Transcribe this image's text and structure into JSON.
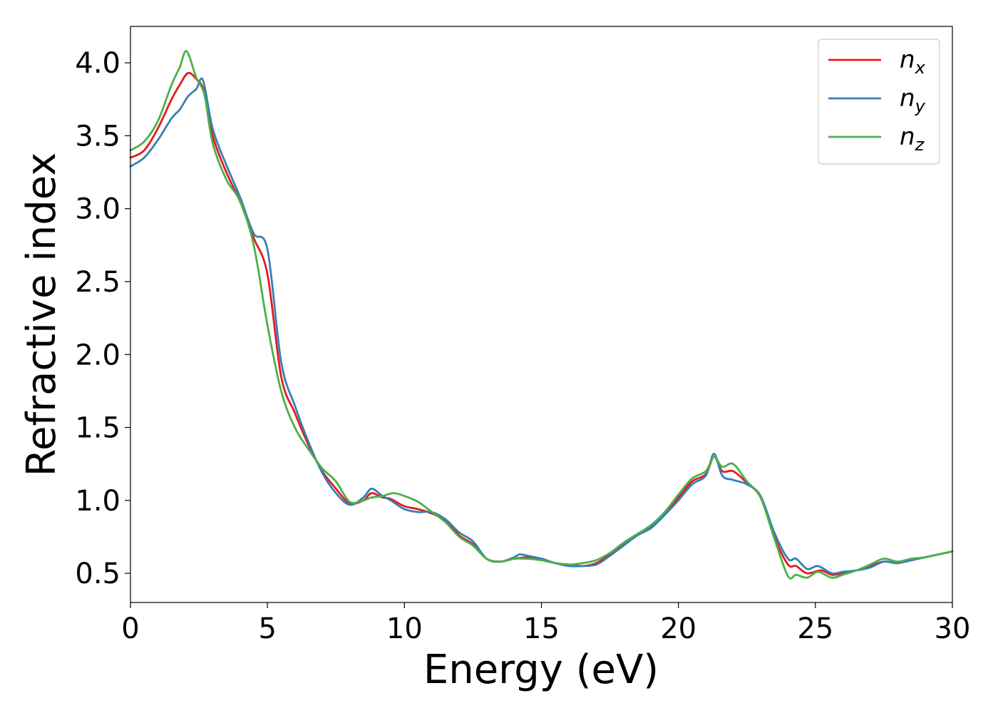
{
  "chart_data": {
    "type": "line",
    "xlabel": "Energy (eV)",
    "ylabel": "Refractive index",
    "xlim": [
      0,
      30
    ],
    "ylim": [
      0.3,
      4.25
    ],
    "xticks": [
      "0",
      "5",
      "10",
      "15",
      "20",
      "25",
      "30"
    ],
    "yticks": [
      "0.5",
      "1.0",
      "1.5",
      "2.0",
      "2.5",
      "3.0",
      "3.5",
      "4.0"
    ],
    "grid": false,
    "legend_position": "top-right",
    "series": [
      {
        "name": "n",
        "subscript": "x",
        "color": "#e41a1c",
        "points": [
          [
            0,
            3.35
          ],
          [
            0.5,
            3.4
          ],
          [
            1,
            3.55
          ],
          [
            1.5,
            3.75
          ],
          [
            1.8,
            3.85
          ],
          [
            2.1,
            3.93
          ],
          [
            2.4,
            3.89
          ],
          [
            2.7,
            3.8
          ],
          [
            3,
            3.5
          ],
          [
            3.5,
            3.25
          ],
          [
            4,
            3.05
          ],
          [
            4.5,
            2.8
          ],
          [
            5,
            2.55
          ],
          [
            5.5,
            1.85
          ],
          [
            6,
            1.6
          ],
          [
            6.5,
            1.38
          ],
          [
            7,
            1.2
          ],
          [
            7.5,
            1.08
          ],
          [
            8,
            0.98
          ],
          [
            8.5,
            1.0
          ],
          [
            8.8,
            1.05
          ],
          [
            9.2,
            1.02
          ],
          [
            9.5,
            1.01
          ],
          [
            10,
            0.96
          ],
          [
            10.5,
            0.94
          ],
          [
            11,
            0.91
          ],
          [
            11.5,
            0.86
          ],
          [
            12,
            0.76
          ],
          [
            12.5,
            0.7
          ],
          [
            13,
            0.6
          ],
          [
            13.5,
            0.58
          ],
          [
            14,
            0.6
          ],
          [
            14.5,
            0.61
          ],
          [
            15,
            0.6
          ],
          [
            15.5,
            0.57
          ],
          [
            16,
            0.56
          ],
          [
            16.5,
            0.55
          ],
          [
            17,
            0.57
          ],
          [
            17.5,
            0.63
          ],
          [
            18,
            0.7
          ],
          [
            18.5,
            0.77
          ],
          [
            19,
            0.82
          ],
          [
            19.5,
            0.91
          ],
          [
            20,
            1.02
          ],
          [
            20.5,
            1.13
          ],
          [
            21,
            1.18
          ],
          [
            21.3,
            1.3
          ],
          [
            21.6,
            1.2
          ],
          [
            22,
            1.2
          ],
          [
            22.5,
            1.12
          ],
          [
            23,
            1.02
          ],
          [
            23.5,
            0.75
          ],
          [
            24,
            0.56
          ],
          [
            24.3,
            0.55
          ],
          [
            24.7,
            0.5
          ],
          [
            25.2,
            0.52
          ],
          [
            25.6,
            0.49
          ],
          [
            26,
            0.5
          ],
          [
            26.5,
            0.52
          ],
          [
            27,
            0.55
          ],
          [
            27.5,
            0.58
          ],
          [
            28,
            0.57
          ],
          [
            28.5,
            0.59
          ],
          [
            29,
            0.61
          ],
          [
            29.5,
            0.63
          ],
          [
            30,
            0.65
          ]
        ]
      },
      {
        "name": "n",
        "subscript": "y",
        "color": "#377eb8",
        "points": [
          [
            0,
            3.29
          ],
          [
            0.5,
            3.35
          ],
          [
            1,
            3.47
          ],
          [
            1.5,
            3.62
          ],
          [
            1.8,
            3.68
          ],
          [
            2.1,
            3.77
          ],
          [
            2.4,
            3.82
          ],
          [
            2.65,
            3.88
          ],
          [
            3,
            3.55
          ],
          [
            3.5,
            3.3
          ],
          [
            4,
            3.08
          ],
          [
            4.5,
            2.83
          ],
          [
            5,
            2.72
          ],
          [
            5.5,
            1.95
          ],
          [
            6,
            1.65
          ],
          [
            6.5,
            1.4
          ],
          [
            7,
            1.19
          ],
          [
            7.5,
            1.05
          ],
          [
            8,
            0.97
          ],
          [
            8.5,
            1.02
          ],
          [
            8.8,
            1.08
          ],
          [
            9.2,
            1.03
          ],
          [
            9.5,
            1.0
          ],
          [
            10,
            0.94
          ],
          [
            10.5,
            0.92
          ],
          [
            11,
            0.92
          ],
          [
            11.5,
            0.87
          ],
          [
            12,
            0.78
          ],
          [
            12.5,
            0.72
          ],
          [
            13,
            0.6
          ],
          [
            13.5,
            0.58
          ],
          [
            14,
            0.61
          ],
          [
            14.2,
            0.63
          ],
          [
            14.5,
            0.62
          ],
          [
            15,
            0.6
          ],
          [
            15.5,
            0.57
          ],
          [
            16,
            0.55
          ],
          [
            16.5,
            0.55
          ],
          [
            17,
            0.56
          ],
          [
            17.5,
            0.62
          ],
          [
            18,
            0.69
          ],
          [
            18.5,
            0.76
          ],
          [
            19,
            0.81
          ],
          [
            19.5,
            0.9
          ],
          [
            20,
            1.0
          ],
          [
            20.5,
            1.11
          ],
          [
            21,
            1.17
          ],
          [
            21.3,
            1.32
          ],
          [
            21.6,
            1.17
          ],
          [
            22,
            1.14
          ],
          [
            22.5,
            1.11
          ],
          [
            23,
            1.03
          ],
          [
            23.5,
            0.78
          ],
          [
            24,
            0.6
          ],
          [
            24.3,
            0.6
          ],
          [
            24.7,
            0.53
          ],
          [
            25.1,
            0.55
          ],
          [
            25.6,
            0.5
          ],
          [
            26,
            0.51
          ],
          [
            26.5,
            0.52
          ],
          [
            27,
            0.54
          ],
          [
            27.5,
            0.58
          ],
          [
            28,
            0.57
          ],
          [
            28.5,
            0.59
          ],
          [
            29,
            0.61
          ],
          [
            29.5,
            0.63
          ],
          [
            30,
            0.65
          ]
        ]
      },
      {
        "name": "n",
        "subscript": "z",
        "color": "#4daf4a",
        "points": [
          [
            0,
            3.4
          ],
          [
            0.5,
            3.46
          ],
          [
            1,
            3.6
          ],
          [
            1.5,
            3.85
          ],
          [
            1.8,
            3.97
          ],
          [
            2.05,
            4.08
          ],
          [
            2.4,
            3.9
          ],
          [
            2.7,
            3.78
          ],
          [
            3,
            3.45
          ],
          [
            3.5,
            3.2
          ],
          [
            4,
            3.05
          ],
          [
            4.5,
            2.75
          ],
          [
            5,
            2.2
          ],
          [
            5.5,
            1.75
          ],
          [
            6,
            1.5
          ],
          [
            6.5,
            1.35
          ],
          [
            7,
            1.22
          ],
          [
            7.5,
            1.13
          ],
          [
            8,
            0.99
          ],
          [
            8.5,
            1.0
          ],
          [
            8.8,
            1.02
          ],
          [
            9.2,
            1.03
          ],
          [
            9.6,
            1.05
          ],
          [
            10,
            1.03
          ],
          [
            10.5,
            0.99
          ],
          [
            11,
            0.92
          ],
          [
            11.5,
            0.85
          ],
          [
            12,
            0.75
          ],
          [
            12.5,
            0.69
          ],
          [
            13,
            0.6
          ],
          [
            13.5,
            0.58
          ],
          [
            14,
            0.6
          ],
          [
            14.5,
            0.6
          ],
          [
            15,
            0.59
          ],
          [
            15.5,
            0.57
          ],
          [
            16,
            0.56
          ],
          [
            16.5,
            0.57
          ],
          [
            17,
            0.59
          ],
          [
            17.5,
            0.64
          ],
          [
            18,
            0.71
          ],
          [
            18.5,
            0.77
          ],
          [
            19,
            0.83
          ],
          [
            19.5,
            0.92
          ],
          [
            20,
            1.04
          ],
          [
            20.5,
            1.15
          ],
          [
            21,
            1.2
          ],
          [
            21.3,
            1.3
          ],
          [
            21.6,
            1.23
          ],
          [
            22,
            1.25
          ],
          [
            22.5,
            1.13
          ],
          [
            23,
            1.02
          ],
          [
            23.5,
            0.74
          ],
          [
            24,
            0.48
          ],
          [
            24.3,
            0.49
          ],
          [
            24.7,
            0.47
          ],
          [
            25.1,
            0.51
          ],
          [
            25.6,
            0.47
          ],
          [
            26,
            0.49
          ],
          [
            26.5,
            0.52
          ],
          [
            27,
            0.56
          ],
          [
            27.5,
            0.6
          ],
          [
            28,
            0.58
          ],
          [
            28.5,
            0.6
          ],
          [
            29,
            0.61
          ],
          [
            29.5,
            0.63
          ],
          [
            30,
            0.65
          ]
        ]
      }
    ]
  }
}
